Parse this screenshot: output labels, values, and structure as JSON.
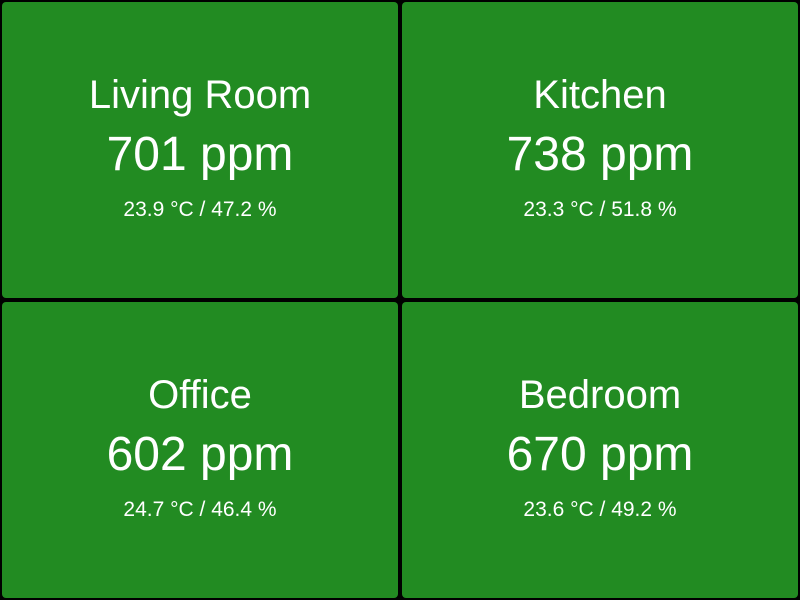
{
  "colors": {
    "background": "#000000",
    "tile_good": "#228b22",
    "text": "#ffffff"
  },
  "rooms": [
    {
      "name": "Living Room",
      "co2": "701 ppm",
      "climate": "23.9 °C / 47.2 %"
    },
    {
      "name": "Kitchen",
      "co2": "738 ppm",
      "climate": "23.3 °C / 51.8 %"
    },
    {
      "name": "Office",
      "co2": "602 ppm",
      "climate": "24.7 °C / 46.4 %"
    },
    {
      "name": "Bedroom",
      "co2": "670 ppm",
      "climate": "23.6 °C / 49.2 %"
    }
  ]
}
